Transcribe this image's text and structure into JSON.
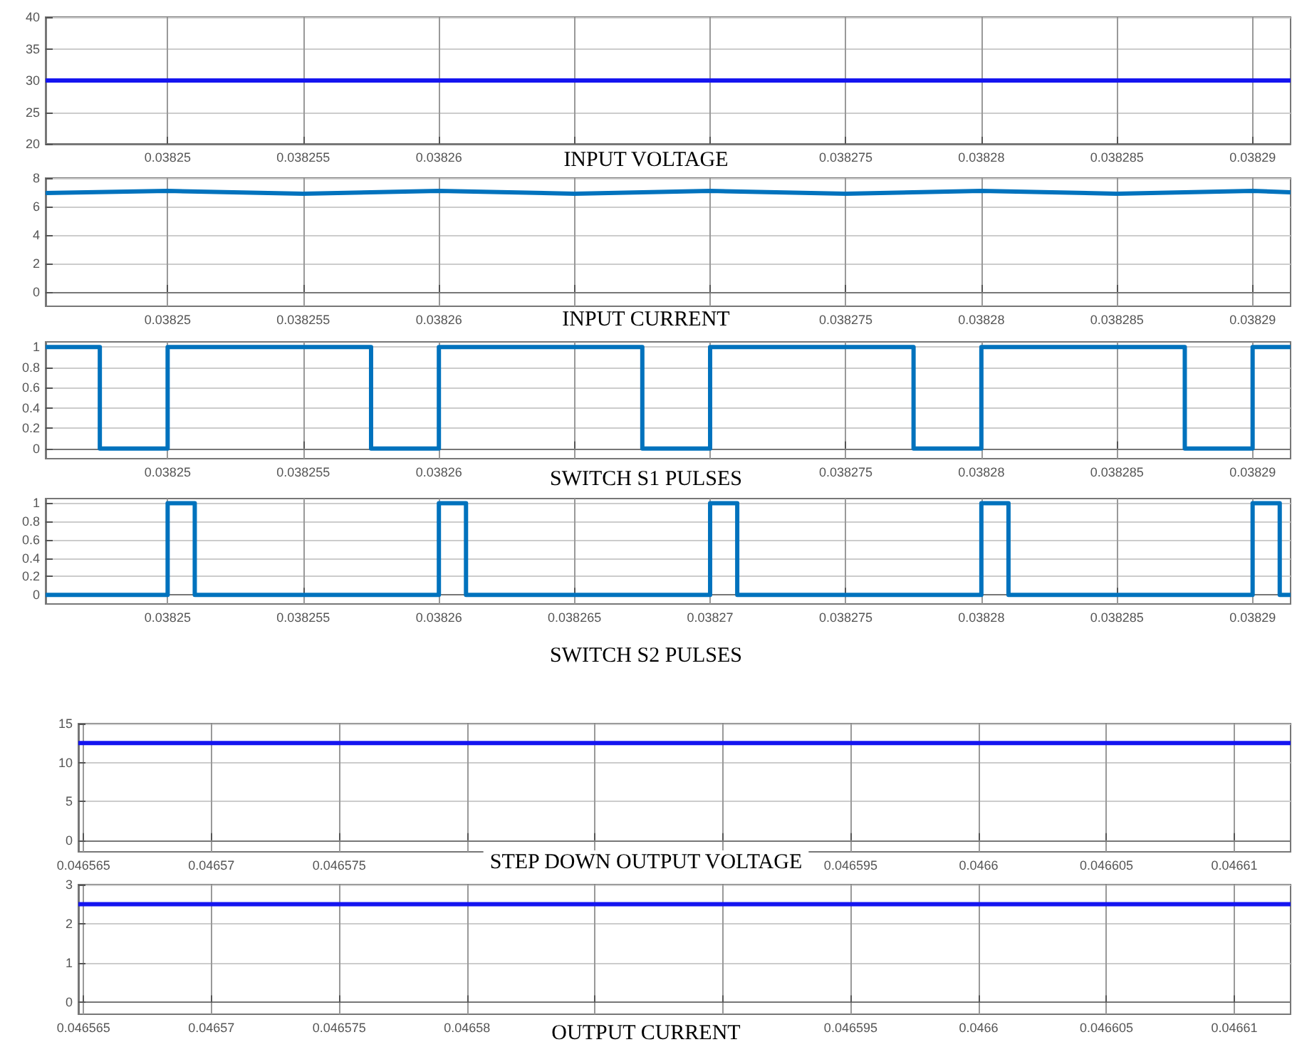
{
  "chart_data": [
    {
      "type": "line",
      "xlabel": "INPUT VOLTAGE",
      "xlim": [
        0.0382455,
        0.0382914
      ],
      "ylim": [
        20,
        40
      ],
      "xticks": [
        0.03825,
        0.038255,
        0.03826,
        {
          "value": 0.038265,
          "label": null
        },
        {
          "value": 0.03827,
          "label": null
        },
        0.038275,
        0.03828,
        0.038285,
        0.03829
      ],
      "yticks": [
        20,
        25,
        30,
        35,
        40
      ],
      "grid": true,
      "series": [
        {
          "color": "#1515f0",
          "x": [
            0.0382455,
            0.0382914
          ],
          "values": [
            30,
            30
          ]
        }
      ]
    },
    {
      "type": "line",
      "xlabel": "INPUT CURRENT",
      "xlim": [
        0.0382455,
        0.0382914
      ],
      "ylim": [
        -1,
        8
      ],
      "xticks": [
        0.03825,
        0.038255,
        0.03826,
        {
          "value": 0.038265,
          "label": null
        },
        {
          "value": 0.03827,
          "label": null
        },
        0.038275,
        0.03828,
        0.038285,
        0.03829
      ],
      "yticks": [
        0,
        2,
        4,
        6,
        8
      ],
      "grid": true,
      "series": [
        {
          "color": "#0072bd",
          "x": [
            0.0382455,
            0.03825,
            0.038255,
            0.03826,
            0.038265,
            0.03827,
            0.038275,
            0.03828,
            0.038285,
            0.03829,
            0.0382914
          ],
          "values": [
            6.95,
            7.1,
            6.9,
            7.1,
            6.9,
            7.1,
            6.9,
            7.1,
            6.9,
            7.1,
            7.0
          ]
        }
      ]
    },
    {
      "type": "step",
      "xlabel": "SWITCH S1 PULSES",
      "xlim": [
        0.0382455,
        0.0382914
      ],
      "ylim": [
        -0.1,
        1.05
      ],
      "xticks": [
        0.03825,
        0.038255,
        0.03826,
        {
          "value": 0.038265,
          "label": null
        },
        {
          "value": 0.03827,
          "label": null
        },
        0.038275,
        0.03828,
        0.038285,
        0.03829
      ],
      "yticks": [
        0,
        0.2,
        0.4,
        0.6,
        0.8,
        1
      ],
      "grid": true,
      "series": [
        {
          "color": "#0072bd",
          "x": [
            0.0382455,
            0.0382475,
            0.03825,
            0.0382575,
            0.03826,
            0.0382675,
            0.03827,
            0.0382775,
            0.03828,
            0.0382875,
            0.03829,
            0.0382914
          ],
          "values": [
            1,
            0,
            1,
            0,
            1,
            0,
            1,
            0,
            1,
            0,
            1,
            1
          ]
        }
      ]
    },
    {
      "type": "step",
      "xlabel": "SWITCH S2 PULSES",
      "xlim": [
        0.0382455,
        0.0382914
      ],
      "ylim": [
        -0.1,
        1.05
      ],
      "xticks": [
        0.03825,
        0.038255,
        0.03826,
        0.038265,
        0.03827,
        0.038275,
        0.03828,
        0.038285,
        0.03829
      ],
      "yticks": [
        0,
        0.2,
        0.4,
        0.6,
        0.8,
        1
      ],
      "grid": true,
      "series": [
        {
          "color": "#0072bd",
          "x": [
            0.0382455,
            0.03825,
            0.038251,
            0.03826,
            0.038261,
            0.03827,
            0.038271,
            0.03828,
            0.038281,
            0.03829,
            0.038291,
            0.0382914
          ],
          "values": [
            0,
            1,
            0,
            1,
            0,
            1,
            0,
            1,
            0,
            1,
            0,
            0
          ]
        }
      ]
    },
    {
      "type": "line",
      "xlabel": "STEP DOWN OUTPUT VOLTAGE",
      "xlim": [
        0.0465648,
        0.0466122
      ],
      "ylim": [
        -1.5,
        15
      ],
      "xticks": [
        0.046565,
        0.04657,
        0.046575,
        {
          "value": 0.04658,
          "label": null
        },
        {
          "value": 0.046585,
          "label": null
        },
        {
          "value": 0.04659,
          "label": null
        },
        0.046595,
        0.0466,
        0.046605,
        0.04661
      ],
      "yticks": [
        0,
        5,
        10,
        15
      ],
      "grid": true,
      "series": [
        {
          "color": "#1515f0",
          "x": [
            0.0465648,
            0.0466122
          ],
          "values": [
            12.5,
            12.5
          ]
        }
      ]
    },
    {
      "type": "line",
      "xlabel": "OUTPUT CURRENT",
      "xlim": [
        0.0465648,
        0.0466122
      ],
      "ylim": [
        -0.3,
        3
      ],
      "xticks": [
        0.046565,
        0.04657,
        0.046575,
        0.04658,
        {
          "value": 0.046585,
          "label": null
        },
        {
          "value": 0.04659,
          "label": null
        },
        0.046595,
        0.0466,
        0.046605,
        0.04661
      ],
      "yticks": [
        0,
        1,
        2,
        3
      ],
      "grid": true,
      "series": [
        {
          "color": "#1515f0",
          "x": [
            0.0465648,
            0.0466122
          ],
          "values": [
            2.5,
            2.5
          ]
        }
      ]
    }
  ]
}
